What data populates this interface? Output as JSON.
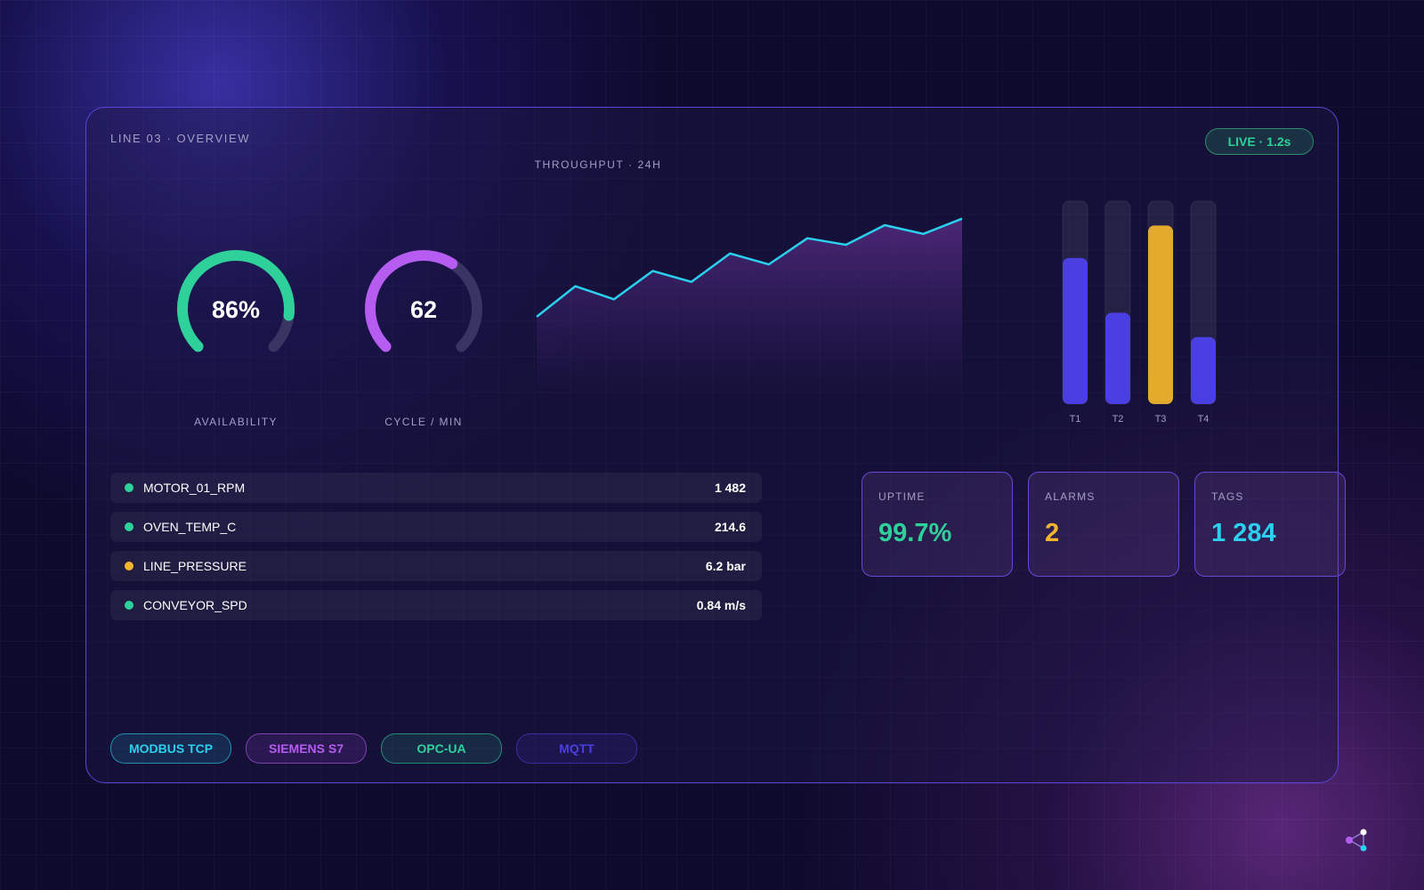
{
  "header": {
    "title": "LINE 03 · OVERVIEW",
    "badge": "LIVE · 1.2s"
  },
  "gauges": [
    {
      "label": "AVAILABILITY",
      "value": 86,
      "value_label": "86%",
      "range": [
        0,
        100
      ],
      "color": "#2fd19a"
    },
    {
      "label": "CYCLE / MIN",
      "value": 62,
      "range": [
        0,
        100
      ],
      "color": "#b65cf0"
    }
  ],
  "chart_data": [
    {
      "type": "line",
      "title": "THROUGHPUT · 24H",
      "values": [
        38,
        52,
        46,
        59,
        54,
        67,
        62,
        74,
        71,
        80,
        76,
        83
      ],
      "ylim": [
        0,
        100
      ],
      "color": "#2ad0ee"
    },
    {
      "type": "bar",
      "categories": [
        "T1",
        "T2",
        "T3",
        "T4"
      ],
      "values": [
        72,
        45,
        88,
        33
      ],
      "ylim": [
        0,
        100
      ],
      "colors": [
        "#4a3fe0",
        "#4a3fe0",
        "#e3aa2c",
        "#4a3fe0"
      ]
    }
  ],
  "tags": [
    {
      "name": "MOTOR_01_RPM",
      "value": "1 482",
      "status_color": "#2fd19a"
    },
    {
      "name": "OVEN_TEMP_C",
      "value": "214.6",
      "status_color": "#2fd19a"
    },
    {
      "name": "LINE_PRESSURE",
      "value": "6.2 bar",
      "status_color": "#f3b531"
    },
    {
      "name": "CONVEYOR_SPD",
      "value": "0.84 m/s",
      "status_color": "#2fd19a"
    }
  ],
  "stats": [
    {
      "label": "UPTIME",
      "value": "99.7%",
      "color": "#2fd19a"
    },
    {
      "label": "ALARMS",
      "value": "2",
      "color": "#f3b531"
    },
    {
      "label": "TAGS",
      "value": "1 284",
      "color": "#2ad0ee"
    }
  ],
  "protocols": [
    {
      "label": "MODBUS TCP",
      "color": "#2ad0ee"
    },
    {
      "label": "SIEMENS S7",
      "color": "#b65cf0"
    },
    {
      "label": "OPC-UA",
      "color": "#2fd19a"
    },
    {
      "label": "MQTT",
      "color": "#4a3fe0"
    }
  ]
}
